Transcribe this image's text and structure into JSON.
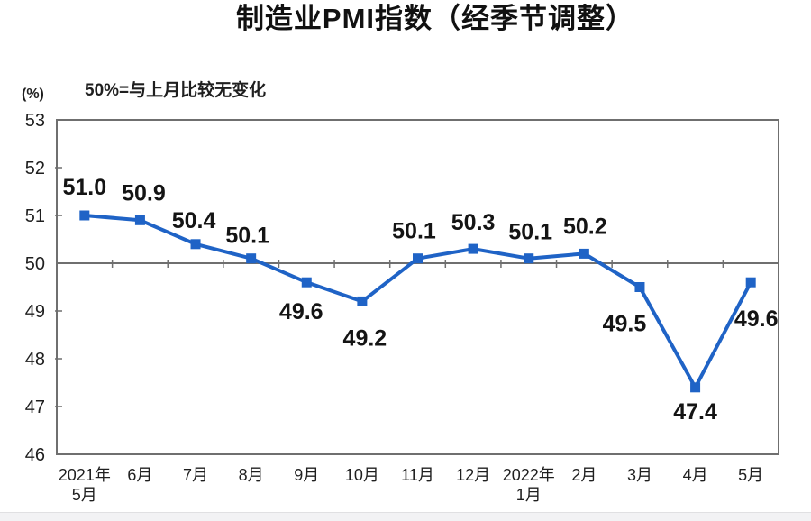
{
  "chart_data": {
    "type": "line",
    "title": "制造业PMI指数（经季节调整）",
    "note": "50%=与上月比较无变化",
    "unit_label": "(%)",
    "categories": [
      [
        "2021年",
        "5月"
      ],
      [
        "6月"
      ],
      [
        "7月"
      ],
      [
        "8月"
      ],
      [
        "9月"
      ],
      [
        "10月"
      ],
      [
        "11月"
      ],
      [
        "12月"
      ],
      [
        "2022年",
        "1月"
      ],
      [
        "2月"
      ],
      [
        "3月"
      ],
      [
        "4月"
      ],
      [
        "5月"
      ]
    ],
    "series": [
      {
        "name": "制造业PMI指数",
        "values": [
          51.0,
          50.9,
          50.4,
          50.1,
          49.6,
          49.2,
          50.1,
          50.3,
          50.1,
          50.2,
          49.5,
          47.4,
          49.6
        ],
        "labels": [
          "51.0",
          "50.9",
          "50.4",
          "50.1",
          "49.6",
          "49.2",
          "50.1",
          "50.3",
          "50.1",
          "50.2",
          "49.5",
          "47.4",
          "49.6"
        ]
      }
    ],
    "ylim": [
      46,
      53
    ],
    "ytick_step": 1,
    "ref_line": 50,
    "grid": false,
    "legend": "none",
    "marker": "square",
    "line_color": "#1f63c6",
    "axis_color": "#6f6f6f",
    "text_color": "#1f1f1f",
    "label_color": "#141414"
  }
}
